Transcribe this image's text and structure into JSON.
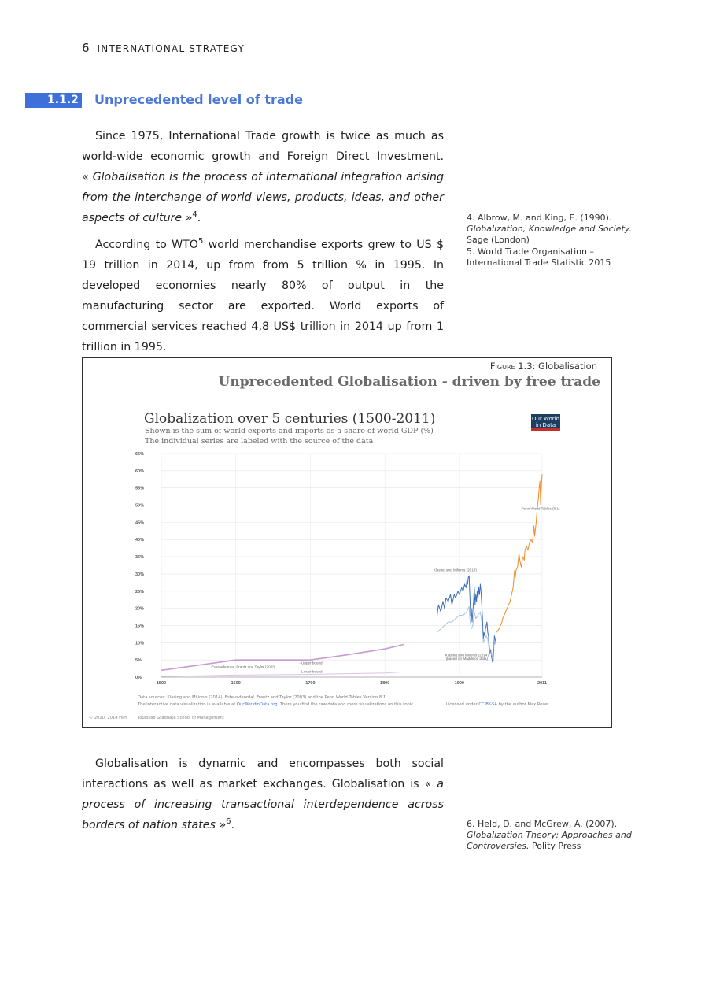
{
  "header": {
    "page_number": "6",
    "running_title": "INTERNATIONAL STRATEGY"
  },
  "section": {
    "number": "1.1.2",
    "title": "Unprecedented level of trade"
  },
  "paragraphs": {
    "p1": {
      "a": "Since 1975, International Trade growth is twice as much as world-wide economic growth and Foreign Direct Investment. « ",
      "quote": "Globalisation is the process of international integration arising from the interchange of world views, products, ideas, and other aspects of culture »",
      "ref": "4",
      "end": "."
    },
    "p2": {
      "a": "According to WTO",
      "ref": "5",
      "b": " world merchandise exports grew to US $ 19 trillion in 2014, up from from 5 trillion % in 1995. In developed economies nearly 80% of output in the manufacturing sector are exported. World exports of commercial services reached 4,8 US$ trillion in 2014 up from 1 trillion in 1995."
    },
    "p3": {
      "a": "Globalisation is dynamic and encompasses both social interactions as well as market exchanges. Globalisation is « ",
      "quote": "a process of increasing transactional interdependence across borders of nation states »",
      "ref": "6",
      "end": "."
    }
  },
  "notes": {
    "n4": {
      "num": "4.",
      "a": " Albrow, M. and King, E. (1990). ",
      "title": "Globalization, Knowledge and Society.",
      "b": " Sage (London)"
    },
    "n5": {
      "num": "5.",
      "a": " World Trade Organisation – International Trade Statistic 2015"
    },
    "n6": {
      "num": "6.",
      "a": " Held, D. and McGrew, A. (2007). ",
      "title": "Globalization Theory: Approaches and Controversies.",
      "b": " Polity Press"
    }
  },
  "figure": {
    "caption_label": "Figure 1.3:",
    "caption_text": " Globalisation",
    "heading": "Unprecedented Globalisation - driven by free trade",
    "logo_line1": "Our World",
    "logo_line2": "in Data",
    "copyright": "© 2010, 2014 HPh",
    "school": "Toulouse Graduate School of Management",
    "sources_line1": "Data sources: Klasing and Milionis (2014), Estevadeordal, Frantz and Taylor (2003) and the Penn World Tables Version 8.1",
    "sources_line2_a": "The interactive data visualization is available at ",
    "sources_line2_link": "OurWorldinData.org",
    "sources_line2_b": ". There you find the raw data and more visualizations on this topic.",
    "license_a": "Licensed under ",
    "license_link": "CC-BY-SA",
    "license_b": " by the author Max Roser."
  },
  "chart_data": {
    "type": "line",
    "title": "Globalization over 5 centuries (1500-2011)",
    "subtitle_1": "Shown is the sum of world exports and imports as a share of world GDP (%)",
    "subtitle_2": "The individual series are labeled with the source of the data",
    "xlim": [
      1500,
      2011
    ],
    "ylim": [
      0,
      65
    ],
    "x_ticks": [
      "1500",
      "1600",
      "1700",
      "1800",
      "1900",
      "2011"
    ],
    "y_ticks": [
      "0%",
      "5%",
      "10%",
      "15%",
      "20%",
      "25%",
      "30%",
      "35%",
      "40%",
      "45%",
      "50%",
      "55%",
      "60%",
      "65%"
    ],
    "grid": true,
    "colors": {
      "estevadeordal": "#c79ad4",
      "klasing": "#3c70b8",
      "klasing_maddison": "#9fbde0",
      "penn": "#f08c2a"
    },
    "series": [
      {
        "name": "Estevadeordal, Frantz and Taylor (2003)",
        "key": "estevadeordal_upper",
        "x": [
          1500,
          1600,
          1700,
          1750,
          1800,
          1825
        ],
        "y": [
          2,
          5,
          5,
          6.5,
          8.2,
          9.5
        ]
      },
      {
        "key": "estevadeordal_lower",
        "x": [
          1500,
          1600,
          1700,
          1800,
          1825
        ],
        "y": [
          0.2,
          0.6,
          0.8,
          1.2,
          1.5
        ]
      },
      {
        "name": "Klasing and Milionis (2014)",
        "key": "klasing",
        "x": [
          1870,
          1872,
          1875,
          1878,
          1880,
          1882,
          1885,
          1888,
          1890,
          1893,
          1895,
          1898,
          1900,
          1903,
          1905,
          1907,
          1909,
          1910,
          1911,
          1912,
          1913,
          1914,
          1915,
          1916,
          1917,
          1918,
          1919,
          1920,
          1921,
          1922,
          1923,
          1924,
          1925,
          1926,
          1927,
          1928,
          1929,
          1930,
          1931,
          1932,
          1933,
          1934,
          1935,
          1936,
          1937,
          1938,
          1939,
          1940,
          1941,
          1942,
          1943,
          1944,
          1945,
          1946,
          1947,
          1948,
          1949
        ],
        "y": [
          18,
          21,
          19,
          22,
          20,
          23,
          22,
          24,
          21,
          24,
          23,
          25,
          24,
          26,
          25,
          27,
          26,
          28,
          27,
          29,
          29.5,
          24,
          18,
          20,
          16,
          19,
          22,
          26,
          21,
          24,
          22,
          25,
          23,
          26,
          24,
          27,
          25,
          21,
          17,
          11,
          13,
          12,
          14,
          15,
          16,
          13,
          12,
          9,
          7,
          8,
          6,
          5,
          4,
          8,
          12,
          11,
          10
        ]
      },
      {
        "name": "Klasing and Milionis (2014) (based on Maddison data)",
        "key": "klasing_maddison",
        "x": [
          1870,
          1875,
          1880,
          1885,
          1890,
          1895,
          1900,
          1905,
          1910,
          1912,
          1913,
          1914,
          1916,
          1918,
          1920,
          1922,
          1925,
          1928,
          1930,
          1932,
          1934,
          1936,
          1938,
          1940,
          1942,
          1944,
          1946,
          1948,
          1950
        ],
        "y": [
          13,
          14,
          15,
          16,
          16,
          17,
          18,
          18,
          19,
          20,
          20.5,
          17,
          14,
          15,
          19,
          17,
          18,
          19,
          16,
          10,
          11,
          12,
          11,
          8,
          7,
          6,
          9,
          10,
          9
        ]
      },
      {
        "name": "Penn World Tables (8.1)",
        "key": "penn",
        "x": [
          1950,
          1953,
          1955,
          1957,
          1958,
          1960,
          1962,
          1964,
          1966,
          1968,
          1970,
          1972,
          1974,
          1975,
          1976,
          1978,
          1980,
          1981,
          1982,
          1983,
          1985,
          1987,
          1988,
          1990,
          1992,
          1994,
          1996,
          1998,
          2000,
          2001,
          2002,
          2003,
          2004,
          2005,
          2006,
          2007,
          2008,
          2009,
          2010,
          2011
        ],
        "y": [
          13,
          14,
          15,
          16,
          17,
          18,
          19,
          20,
          21,
          22,
          24,
          26,
          31,
          29,
          31,
          32,
          36,
          34,
          33,
          32,
          35,
          34,
          37,
          38,
          37,
          39,
          40,
          39,
          44,
          41,
          43,
          45,
          48,
          50,
          52,
          55,
          57,
          50,
          56,
          59
        ]
      }
    ],
    "labels": {
      "estevadeordal": "Estevadeordal, Frantz and Taylor (2003)",
      "upper": "- Upper bound",
      "lower": "- Lower bound",
      "klasing": "Klasing and Milionis (2014)",
      "klasing_maddison_1": "Klasing and Milionis (2014)",
      "klasing_maddison_2": "(based on Maddison data)",
      "penn": "Penn World Tables (8.1)"
    }
  }
}
